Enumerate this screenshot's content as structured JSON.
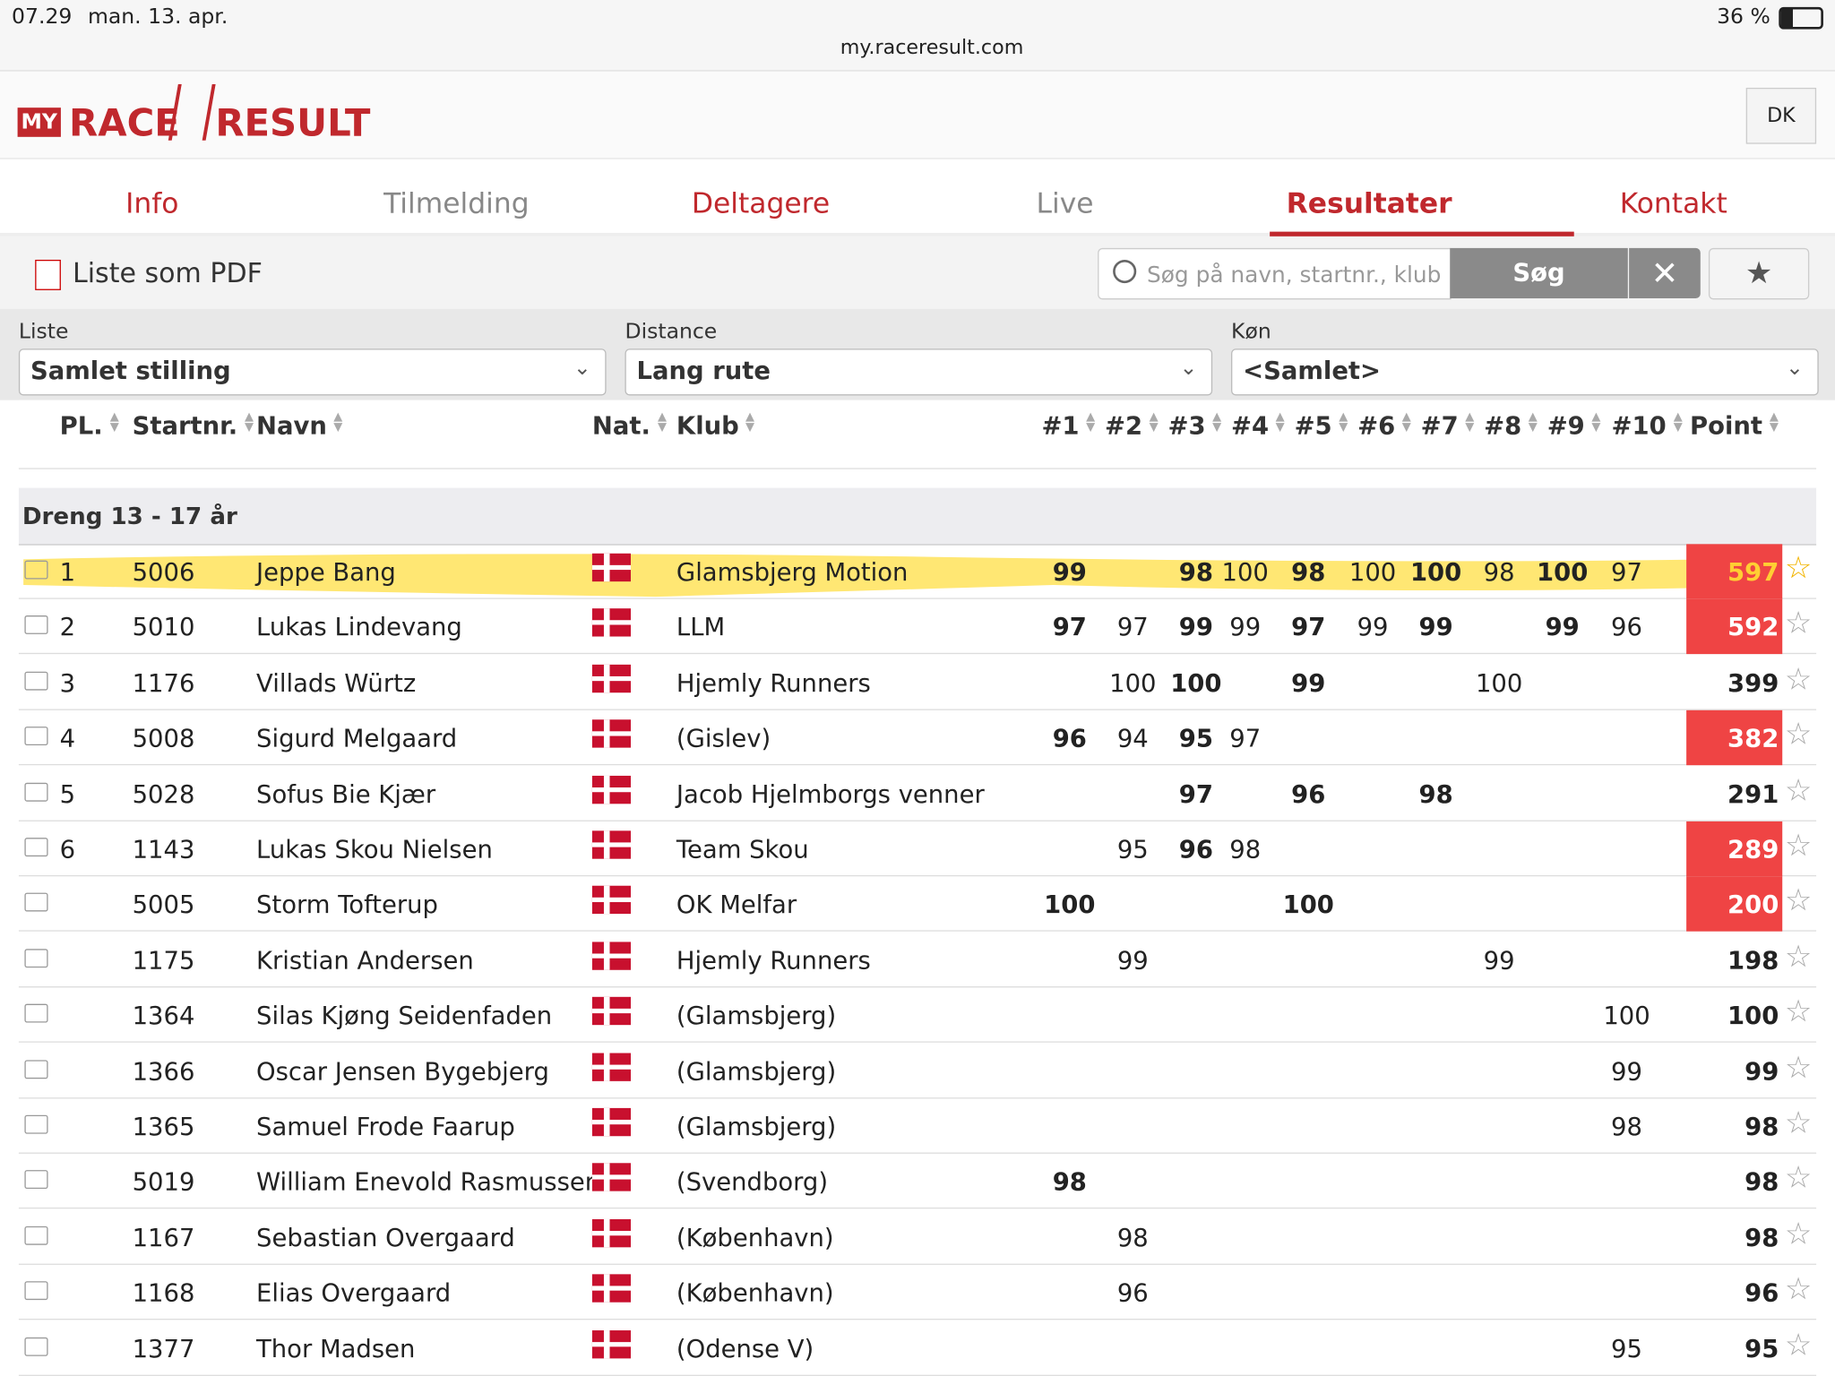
{
  "status_bar": {
    "time": "07.29",
    "date": "man. 13. apr.",
    "battery": "36 %"
  },
  "url": "my.raceresult.com",
  "logo": {
    "my": "MY",
    "race": "RACE",
    "result": "RESULT"
  },
  "language": "DK",
  "tabs": [
    {
      "label": "Info",
      "active": false,
      "enabled": true
    },
    {
      "label": "Tilmelding",
      "active": false,
      "enabled": false
    },
    {
      "label": "Deltagere",
      "active": false,
      "enabled": true
    },
    {
      "label": "Live",
      "active": false,
      "enabled": false
    },
    {
      "label": "Resultater",
      "active": true,
      "enabled": true
    },
    {
      "label": "Kontakt",
      "active": false,
      "enabled": true
    }
  ],
  "pdf_link": "Liste som PDF",
  "search": {
    "placeholder": "Søg på navn, startnr., klub",
    "button": "Søg"
  },
  "filters": [
    {
      "label": "Liste",
      "value": "Samlet stilling"
    },
    {
      "label": "Distance",
      "value": "Lang rute"
    },
    {
      "label": "Køn",
      "value": "<Samlet>"
    }
  ],
  "table": {
    "columns": [
      "PL.",
      "Startnr.",
      "Navn",
      "Nat.",
      "Klub",
      "#1",
      "#2",
      "#3",
      "#4",
      "#5",
      "#6",
      "#7",
      "#8",
      "#9",
      "#10",
      "Point"
    ],
    "group": "Dreng 13 - 17 år",
    "rows": [
      {
        "place": 1,
        "bib": 5006,
        "name": "Jeppe Bang",
        "club": "Glamsbjerg Motion",
        "scores": [
          99,
          null,
          98,
          100,
          98,
          100,
          100,
          98,
          100,
          97
        ],
        "counted": [
          0,
          2,
          4,
          6,
          8
        ],
        "points": 597,
        "highlight": true
      },
      {
        "place": 2,
        "bib": 5010,
        "name": "Lukas Lindevang",
        "club": "LLM",
        "scores": [
          97,
          97,
          99,
          99,
          97,
          99,
          99,
          null,
          99,
          96
        ],
        "counted": [
          0,
          2,
          4,
          6,
          8
        ],
        "points": 592,
        "highlight": true
      },
      {
        "place": 3,
        "bib": 1176,
        "name": "Villads Würtz",
        "club": "Hjemly Runners",
        "scores": [
          null,
          100,
          100,
          null,
          99,
          null,
          null,
          100,
          null,
          null
        ],
        "counted": [
          2,
          4
        ],
        "points": 399,
        "highlight": false
      },
      {
        "place": 4,
        "bib": 5008,
        "name": "Sigurd Melgaard",
        "club": "(Gislev)",
        "scores": [
          96,
          94,
          95,
          97,
          null,
          null,
          null,
          null,
          null,
          null
        ],
        "counted": [
          0,
          2
        ],
        "points": 382,
        "highlight": true
      },
      {
        "place": 5,
        "bib": 5028,
        "name": "Sofus Bie Kjær",
        "club": "Jacob Hjelmborgs venner",
        "scores": [
          null,
          null,
          97,
          null,
          96,
          null,
          98,
          null,
          null,
          null
        ],
        "counted": [
          2,
          4,
          6
        ],
        "points": 291,
        "highlight": false
      },
      {
        "place": 6,
        "bib": 1143,
        "name": "Lukas Skou Nielsen",
        "club": "Team Skou",
        "scores": [
          null,
          95,
          96,
          98,
          null,
          null,
          null,
          null,
          null,
          null
        ],
        "counted": [
          2
        ],
        "points": 289,
        "highlight": true
      },
      {
        "place": null,
        "bib": 5005,
        "name": "Storm Tofterup",
        "club": "OK Melfar",
        "scores": [
          100,
          null,
          null,
          null,
          100,
          null,
          null,
          null,
          null,
          null
        ],
        "counted": [
          0,
          4
        ],
        "points": 200,
        "highlight": true
      },
      {
        "place": null,
        "bib": 1175,
        "name": "Kristian Andersen",
        "club": "Hjemly Runners",
        "scores": [
          null,
          99,
          null,
          null,
          null,
          null,
          null,
          99,
          null,
          null
        ],
        "counted": [],
        "points": 198,
        "highlight": false
      },
      {
        "place": null,
        "bib": 1364,
        "name": "Silas Kjøng Seidenfaden",
        "club": "(Glamsbjerg)",
        "scores": [
          null,
          null,
          null,
          null,
          null,
          null,
          null,
          null,
          null,
          100
        ],
        "counted": [],
        "points": 100,
        "highlight": false
      },
      {
        "place": null,
        "bib": 1366,
        "name": "Oscar Jensen Bygebjerg",
        "club": "(Glamsbjerg)",
        "scores": [
          null,
          null,
          null,
          null,
          null,
          null,
          null,
          null,
          null,
          99
        ],
        "counted": [],
        "points": 99,
        "highlight": false
      },
      {
        "place": null,
        "bib": 1365,
        "name": "Samuel Frode Faarup",
        "club": "(Glamsbjerg)",
        "scores": [
          null,
          null,
          null,
          null,
          null,
          null,
          null,
          null,
          null,
          98
        ],
        "counted": [],
        "points": 98,
        "highlight": false
      },
      {
        "place": null,
        "bib": 5019,
        "name": "William Enevold Rasmussen",
        "club": "(Svendborg)",
        "scores": [
          98,
          null,
          null,
          null,
          null,
          null,
          null,
          null,
          null,
          null
        ],
        "counted": [
          0
        ],
        "points": 98,
        "highlight": false
      },
      {
        "place": null,
        "bib": 1167,
        "name": "Sebastian Overgaard",
        "club": "(København)",
        "scores": [
          null,
          98,
          null,
          null,
          null,
          null,
          null,
          null,
          null,
          null
        ],
        "counted": [],
        "points": 98,
        "highlight": false
      },
      {
        "place": null,
        "bib": 1168,
        "name": "Elias Overgaard",
        "club": "(København)",
        "scores": [
          null,
          96,
          null,
          null,
          null,
          null,
          null,
          null,
          null,
          null
        ],
        "counted": [],
        "points": 96,
        "highlight": false
      },
      {
        "place": null,
        "bib": 1377,
        "name": "Thor Madsen",
        "club": "(Odense V)",
        "scores": [
          null,
          null,
          null,
          null,
          null,
          null,
          null,
          null,
          null,
          95
        ],
        "counted": [],
        "points": 95,
        "highlight": false
      }
    ]
  }
}
